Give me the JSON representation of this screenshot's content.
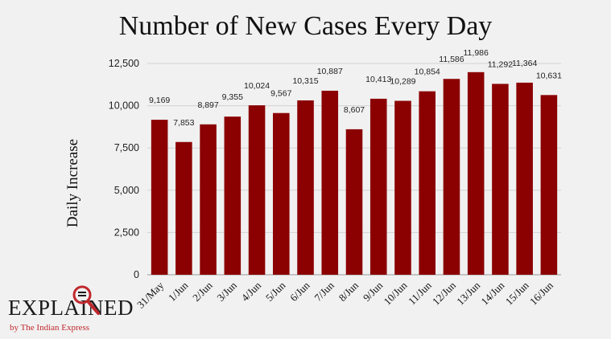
{
  "chart_data": {
    "type": "bar",
    "title": "Number of New Cases Every Day",
    "xlabel": "",
    "ylabel": "Daily Increase",
    "categories": [
      "31/May",
      "1/Jun",
      "2/Jun",
      "3/Jun",
      "4/Jun",
      "5/Jun",
      "6/Jun",
      "7/Jun",
      "8/Jun",
      "9/Jun",
      "10/Jun",
      "11/Jun",
      "12/Jun",
      "13/Jun",
      "14/Jun",
      "15/Jun",
      "16/Jun"
    ],
    "values": [
      9169,
      7853,
      8897,
      9355,
      10024,
      9567,
      10315,
      10887,
      8607,
      10413,
      10289,
      10854,
      11586,
      11986,
      11292,
      11364,
      10631
    ],
    "value_labels": [
      "9,169",
      "7,853",
      "8,897",
      "9,355",
      "10,024",
      "9,567",
      "10,315",
      "10,887",
      "8,607",
      "10,413",
      "10,289",
      "10,854",
      "11,586",
      "11,986",
      "11,292",
      "11,364",
      "10,631"
    ],
    "ylim": [
      0,
      12500
    ],
    "yticks": [
      0,
      2500,
      5000,
      7500,
      10000,
      12500
    ],
    "ytick_labels": [
      "0",
      "2,500",
      "5,000",
      "7,500",
      "10,000",
      "12,500"
    ],
    "grid": true,
    "bar_color": "#8b0000"
  },
  "branding": {
    "logo_word": "EXPLAINED",
    "byline": "by The Indian Express"
  }
}
